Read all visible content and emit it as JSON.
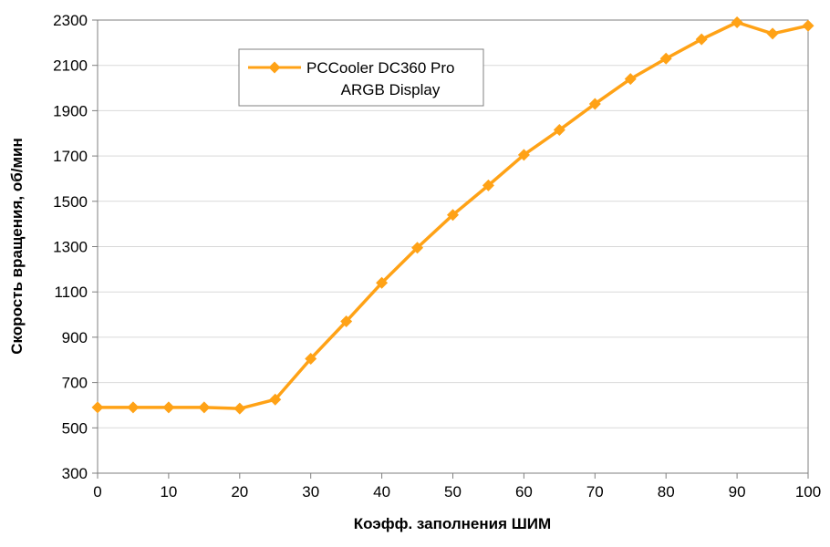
{
  "chart_data": {
    "type": "line",
    "title": "",
    "xlabel": "Коэфф. заполнения ШИМ",
    "ylabel": "Скорость вращения, об/мин",
    "xlim": [
      0,
      100
    ],
    "ylim": [
      300,
      2300
    ],
    "xtick": 10,
    "ytick": 200,
    "grid": "horizontal",
    "legend_position": "top-inside-left",
    "x": [
      0,
      5,
      10,
      15,
      20,
      25,
      30,
      35,
      40,
      45,
      50,
      55,
      60,
      65,
      70,
      75,
      80,
      85,
      90,
      95,
      100
    ],
    "series": [
      {
        "name": "PCCooler DC360 Pro ARGB Display",
        "values": [
          590,
          590,
          590,
          590,
          585,
          625,
          805,
          970,
          1140,
          1295,
          1440,
          1570,
          1705,
          1815,
          1930,
          2040,
          2130,
          2215,
          2290,
          2240,
          2275
        ]
      }
    ],
    "legend_lines": [
      "PCCooler DC360 Pro",
      "ARGB Display"
    ],
    "colors": {
      "line": "#FFA216",
      "grid": "#D9D9D9",
      "axis": "#7F7F7F",
      "text": "#000000",
      "legend_border": "#808080"
    }
  }
}
